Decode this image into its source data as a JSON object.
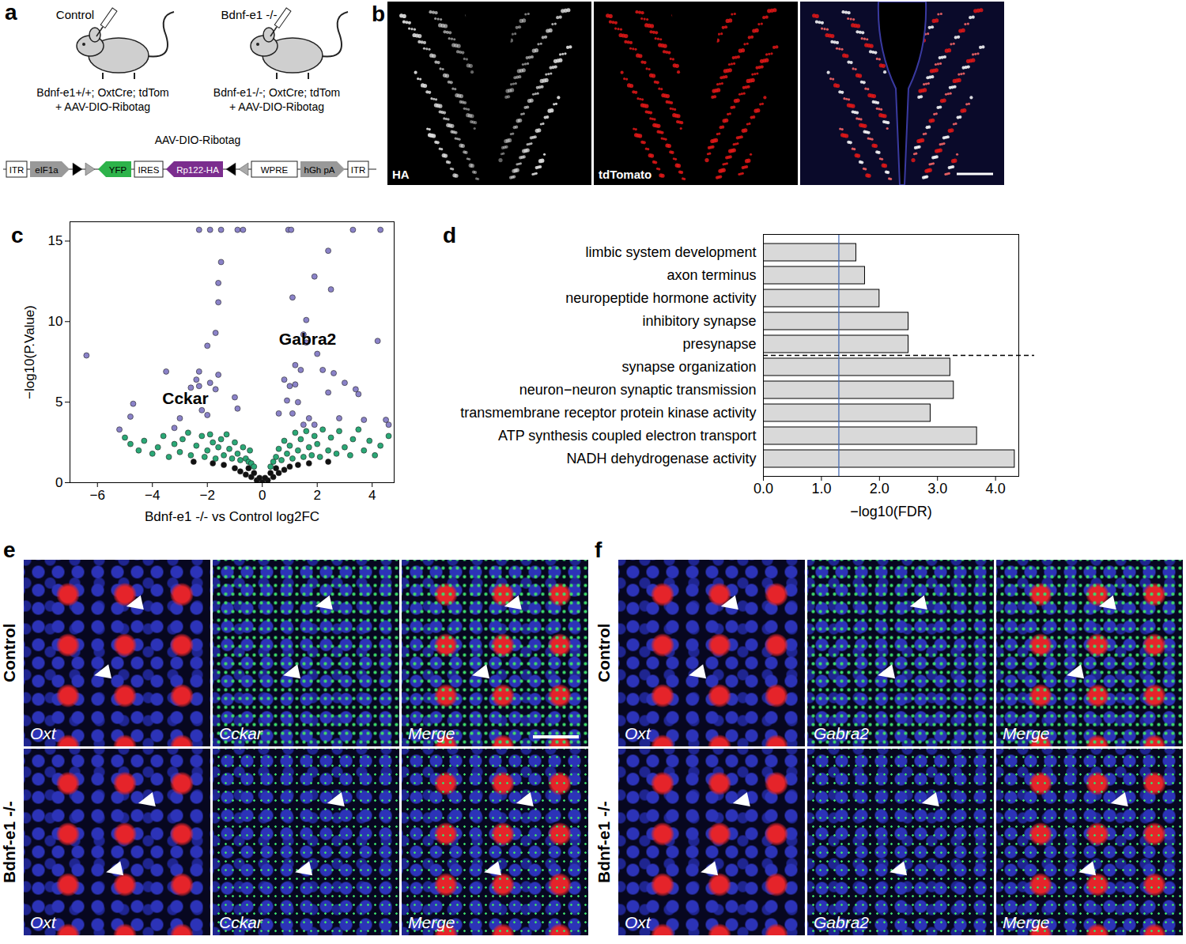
{
  "panel_labels": [
    "a",
    "b",
    "c",
    "d",
    "e",
    "f"
  ],
  "panel_a": {
    "mice": [
      {
        "title": "Control",
        "genotype": "Bdnf-e1+/+; OxtCre; tdTom",
        "injection": "+ AAV-DIO-Ribotag"
      },
      {
        "title": "Bdnf-e1 -/-",
        "genotype": "Bdnf-e1-/-; OxtCre; tdTom",
        "injection": "+ AAV-DIO-Ribotag"
      }
    ],
    "construct": {
      "title": "AAV-DIO-Ribotag",
      "elements": [
        "ITR",
        "eIF1a",
        "YFP",
        "IRES",
        "Rp122-HA",
        "WPRE",
        "hGh pA",
        "ITR"
      ]
    }
  },
  "panel_b": {
    "channels": [
      "HA",
      "tdTomato"
    ]
  },
  "chart_data": [
    {
      "type": "scatter",
      "xlabel": "Bdnf-e1 -/- vs Control log2FC",
      "ylabel": "−log10(P.Value)",
      "xlim": [
        -7,
        4.8
      ],
      "ylim": [
        0,
        16.2
      ],
      "xticks": [
        -6,
        -4,
        -2,
        0,
        2,
        4
      ],
      "yticks": [
        0,
        5,
        10,
        15
      ],
      "series": [
        {
          "color": "#111111",
          "points": [
            [
              -1.0,
              0.9
            ],
            [
              -0.8,
              0.7
            ],
            [
              -0.6,
              0.5
            ],
            [
              -0.4,
              0.35
            ],
            [
              -0.2,
              0.15
            ],
            [
              0,
              0.02
            ],
            [
              0.2,
              0.15
            ],
            [
              0.4,
              0.35
            ],
            [
              0.6,
              0.6
            ],
            [
              0.8,
              0.8
            ],
            [
              1.0,
              1.0
            ],
            [
              -1.4,
              1.1
            ],
            [
              1.3,
              1.1
            ],
            [
              -0.3,
              0.6
            ],
            [
              0.3,
              0.6
            ],
            [
              -0.1,
              0.3
            ],
            [
              0.1,
              0.3
            ],
            [
              -0.5,
              0.9
            ],
            [
              0.5,
              0.9
            ],
            [
              -1.8,
              1.2
            ],
            [
              1.7,
              1.2
            ],
            [
              -2.5,
              1.3
            ],
            [
              2.4,
              1.3
            ]
          ]
        },
        {
          "color": "#2aa876",
          "points": [
            [
              -5.0,
              2.8
            ],
            [
              -4.8,
              2.4
            ],
            [
              -4.5,
              2.0
            ],
            [
              -4.3,
              2.6
            ],
            [
              -4.0,
              1.8
            ],
            [
              -3.8,
              2.2
            ],
            [
              -3.6,
              2.9
            ],
            [
              -3.4,
              1.6
            ],
            [
              -3.2,
              2.4
            ],
            [
              -3.0,
              1.9
            ],
            [
              -2.9,
              2.7
            ],
            [
              -2.7,
              3.1
            ],
            [
              -2.6,
              1.7
            ],
            [
              -2.4,
              2.3
            ],
            [
              -2.2,
              2.9
            ],
            [
              -2.1,
              1.6
            ],
            [
              -2.0,
              2.0
            ],
            [
              -1.9,
              3.0
            ],
            [
              -1.8,
              2.5
            ],
            [
              -1.7,
              1.5
            ],
            [
              -1.6,
              2.2
            ],
            [
              -1.5,
              2.7
            ],
            [
              -1.4,
              1.7
            ],
            [
              -1.3,
              3.0
            ],
            [
              -1.2,
              2.1
            ],
            [
              -1.1,
              1.5
            ],
            [
              -1.0,
              2.5
            ],
            [
              -0.9,
              1.8
            ],
            [
              -0.8,
              1.4
            ],
            [
              -0.7,
              2.2
            ],
            [
              -0.6,
              1.5
            ],
            [
              -0.5,
              1.3
            ],
            [
              -0.45,
              2.0
            ],
            [
              -0.4,
              1.2
            ],
            [
              -0.3,
              1.0
            ],
            [
              0.3,
              1.0
            ],
            [
              0.4,
              1.3
            ],
            [
              0.5,
              1.6
            ],
            [
              0.6,
              2.1
            ],
            [
              0.7,
              1.4
            ],
            [
              0.8,
              2.6
            ],
            [
              0.9,
              1.8
            ],
            [
              1.0,
              2.3
            ],
            [
              1.1,
              1.5
            ],
            [
              1.2,
              3.1
            ],
            [
              1.3,
              2.0
            ],
            [
              1.4,
              2.7
            ],
            [
              1.5,
              1.6
            ],
            [
              1.6,
              3.2
            ],
            [
              1.7,
              2.2
            ],
            [
              1.8,
              1.7
            ],
            [
              1.9,
              2.9
            ],
            [
              2.0,
              2.4
            ],
            [
              2.1,
              1.6
            ],
            [
              2.2,
              3.3
            ],
            [
              2.4,
              2.0
            ],
            [
              2.5,
              2.8
            ],
            [
              2.7,
              1.8
            ],
            [
              2.8,
              3.2
            ],
            [
              3.0,
              2.2
            ],
            [
              3.2,
              1.7
            ],
            [
              3.3,
              2.7
            ],
            [
              3.5,
              3.3
            ],
            [
              3.7,
              2.0
            ],
            [
              3.9,
              2.6
            ],
            [
              4.1,
              1.7
            ],
            [
              4.3,
              2.3
            ],
            [
              4.6,
              2.9
            ]
          ]
        },
        {
          "color": "#8a82c8",
          "points": [
            [
              -2.3,
              15.7
            ],
            [
              -1.9,
              15.7
            ],
            [
              -1.5,
              15.7
            ],
            [
              -0.9,
              15.7
            ],
            [
              -0.7,
              15.7
            ],
            [
              0.95,
              15.7
            ],
            [
              1.05,
              15.7
            ],
            [
              3.3,
              15.7
            ],
            [
              4.3,
              15.7
            ],
            [
              -6.4,
              7.9
            ],
            [
              -1.5,
              13.7
            ],
            [
              -1.6,
              12.4
            ],
            [
              2.4,
              14.4
            ],
            [
              1.9,
              12.8
            ],
            [
              2.5,
              12.0
            ],
            [
              1.1,
              11.5
            ],
            [
              -1.6,
              11.2
            ],
            [
              -1.7,
              9.3
            ],
            [
              -2.0,
              8.5
            ],
            [
              1.6,
              10.1
            ],
            [
              4.2,
              8.8
            ],
            [
              1.5,
              9.2
            ],
            [
              1.6,
              8.7
            ],
            [
              2.0,
              8.0
            ],
            [
              -2.3,
              6.9
            ],
            [
              -2.4,
              6.4
            ],
            [
              -2.3,
              6.0
            ],
            [
              -1.9,
              6.2
            ],
            [
              -2.6,
              5.9
            ],
            [
              -1.7,
              5.8
            ],
            [
              -3.5,
              6.9
            ],
            [
              -1.6,
              6.7
            ],
            [
              1.2,
              7.3
            ],
            [
              1.4,
              7.0
            ],
            [
              2.2,
              7.0
            ],
            [
              2.6,
              6.8
            ],
            [
              0.8,
              6.4
            ],
            [
              1.0,
              6.0
            ],
            [
              1.2,
              6.1
            ],
            [
              3.0,
              6.2
            ],
            [
              3.4,
              5.8
            ],
            [
              3.5,
              5.5
            ],
            [
              2.4,
              5.6
            ],
            [
              -1.0,
              5.3
            ],
            [
              -4.7,
              4.9
            ],
            [
              -4.8,
              4.1
            ],
            [
              -2.2,
              4.5
            ],
            [
              -2.0,
              4.2
            ],
            [
              -0.9,
              4.6
            ],
            [
              0.9,
              5.1
            ],
            [
              1.3,
              5.0
            ],
            [
              1.1,
              4.3
            ],
            [
              1.7,
              4.0
            ],
            [
              2.8,
              4.0
            ],
            [
              3.7,
              3.9
            ],
            [
              4.5,
              3.9
            ],
            [
              4.6,
              3.6
            ],
            [
              -5.2,
              3.3
            ],
            [
              1.5,
              3.6
            ],
            [
              1.9,
              3.6
            ],
            [
              -3.2,
              3.4
            ],
            [
              -3.0,
              4.0
            ],
            [
              0.6,
              4.3
            ]
          ]
        }
      ],
      "annotations": [
        {
          "text": "Gabra2",
          "x": 1.65,
          "y": 8.9
        },
        {
          "text": "Cckar",
          "x": -2.8,
          "y": 5.2
        }
      ]
    },
    {
      "type": "bar",
      "orientation": "horizontal",
      "categories": [
        "limbic system development",
        "axon terminus",
        "neuropeptide hormone activity",
        "inhibitory synapse",
        "presynapse",
        "synapse organization",
        "neuron−neuron synaptic transmission",
        "transmembrane receptor protein kinase activity",
        "ATP synthesis coupled electron transport",
        "NADH dehydrogenase activity"
      ],
      "values": [
        1.6,
        1.75,
        2.0,
        2.5,
        2.5,
        3.22,
        3.28,
        2.88,
        3.68,
        4.33
      ],
      "color": "#d9d9d9",
      "xlabel": "−log10(FDR)",
      "xlim": [
        0,
        4.4
      ],
      "xticks": [
        0,
        1,
        2,
        3,
        4
      ],
      "reference_line": 1.3
    }
  ],
  "panel_e": {
    "rows": [
      "Control",
      "Bdnf-e1 -/-"
    ],
    "columns": [
      "Oxt",
      "Cckar",
      "Merge"
    ]
  },
  "panel_f": {
    "rows": [
      "Control",
      "Bdnf-e1 -/-"
    ],
    "columns": [
      "Oxt",
      "Gabra2",
      "Merge"
    ]
  }
}
